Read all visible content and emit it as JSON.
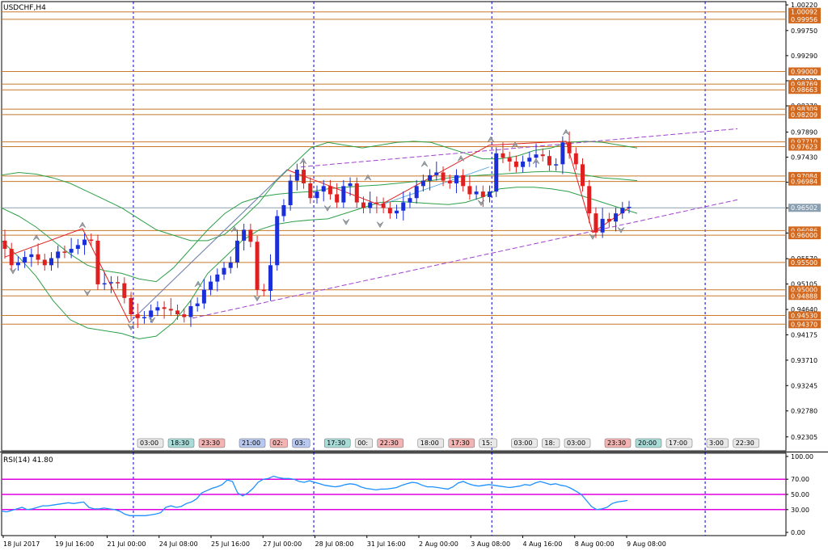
{
  "symbol_title": "USDCHF,H4",
  "rsi_title": "RSI(14) 41.80",
  "colors": {
    "bull": "#1a2fd8",
    "bear": "#e02020",
    "bollinger": "#2ea048",
    "level": "#c8782a",
    "level_tag": "#d2691e",
    "current_tag": "#8a9fb0",
    "trend": "#a040d0",
    "rsi": "#1e90ff",
    "rsi_level": "#e000e0",
    "grid": "#0000cc",
    "zigzag": "#e02020"
  },
  "chart_data": [
    {
      "type": "candlestick",
      "title": "USDCHF,H4",
      "y_ticks": [
        "1.00220",
        "0.99750",
        "0.99290",
        "0.98830",
        "0.98370",
        "0.97890",
        "0.97430",
        "0.96970",
        "0.96500",
        "0.96040",
        "0.95570",
        "0.95105",
        "0.94640",
        "0.94175",
        "0.93710",
        "0.93245",
        "0.92780",
        "0.92305"
      ],
      "ylim": [
        0.9205,
        1.0028
      ],
      "x_ticks": [
        "18 Jul 2017",
        "19 Jul 16:00",
        "21 Jul 00:00",
        "24 Jul 08:00",
        "25 Jul 16:00",
        "27 Jul 00:00",
        "28 Jul 08:00",
        "31 Jul 16:00",
        "2 Aug 00:00",
        "3 Aug 08:00",
        "4 Aug 16:00",
        "8 Aug 00:00",
        "9 Aug 08:00"
      ],
      "price_levels": [
        1.00092,
        0.99956,
        0.99,
        0.98769,
        0.98663,
        0.98309,
        0.98209,
        0.9771,
        0.97623,
        0.97084,
        0.96984,
        0.96086,
        0.96,
        0.955,
        0.95,
        0.94888,
        0.9453,
        0.9437
      ],
      "level_labels": [
        "1.00092",
        "0.99956",
        "0.99000",
        "0.98769",
        "0.98663",
        "0.98309",
        "0.98209",
        "0.97710",
        "0.97623",
        "0.97084",
        "0.96984",
        "0.96086",
        "0.96000",
        "0.95500",
        "0.95000",
        "0.94888",
        "0.94530",
        "0.94370"
      ],
      "current_price": 0.96502,
      "current_label": "0.96502",
      "close": [
        0.9575,
        0.9545,
        0.955,
        0.956,
        0.9565,
        0.9555,
        0.9545,
        0.9558,
        0.957,
        0.9568,
        0.9575,
        0.9582,
        0.9592,
        0.959,
        0.951,
        0.9512,
        0.9514,
        0.9512,
        0.9485,
        0.9455,
        0.9448,
        0.945,
        0.9462,
        0.9468,
        0.9465,
        0.9462,
        0.9455,
        0.945,
        0.947,
        0.9475,
        0.95,
        0.9515,
        0.9528,
        0.954,
        0.955,
        0.959,
        0.961,
        0.9588,
        0.95,
        0.9498,
        0.9545,
        0.9635,
        0.9655,
        0.97,
        0.972,
        0.9695,
        0.9668,
        0.968,
        0.969,
        0.9675,
        0.966,
        0.969,
        0.9695,
        0.966,
        0.965,
        0.966,
        0.9658,
        0.965,
        0.964,
        0.9645,
        0.966,
        0.9668,
        0.969,
        0.97,
        0.971,
        0.9715,
        0.97,
        0.9695,
        0.971,
        0.969,
        0.9675,
        0.968,
        0.967,
        0.968,
        0.975,
        0.9742,
        0.9735,
        0.9725,
        0.9735,
        0.9742,
        0.9748,
        0.9745,
        0.9728,
        0.973,
        0.977,
        0.975,
        0.973,
        0.969,
        0.964,
        0.9605,
        0.963,
        0.9625,
        0.964,
        0.965,
        0.9652
      ],
      "high_low_note": "wicks approximated",
      "bollinger": {
        "upper": [
          0.971,
          0.9715,
          0.9712,
          0.9705,
          0.9695,
          0.968,
          0.9665,
          0.965,
          0.963,
          0.961,
          0.96,
          0.959,
          0.959,
          0.9602,
          0.963,
          0.966,
          0.97,
          0.973,
          0.976,
          0.977,
          0.9765,
          0.976,
          0.9765,
          0.977,
          0.9772,
          0.977,
          0.976,
          0.975,
          0.974,
          0.974,
          0.9745,
          0.9755,
          0.976,
          0.977,
          0.9772,
          0.977,
          0.9765,
          0.976
        ],
        "middle": [
          0.965,
          0.9635,
          0.9615,
          0.959,
          0.9565,
          0.9545,
          0.9535,
          0.953,
          0.952,
          0.9515,
          0.954,
          0.9575,
          0.961,
          0.964,
          0.966,
          0.967,
          0.9675,
          0.9678,
          0.968,
          0.9685,
          0.9688,
          0.969,
          0.9692,
          0.9695,
          0.9698,
          0.97,
          0.9705,
          0.9708,
          0.971,
          0.9712,
          0.9714,
          0.9716,
          0.9717,
          0.9715,
          0.971,
          0.9705,
          0.9703,
          0.97
        ],
        "lower": [
          0.959,
          0.956,
          0.9525,
          0.948,
          0.9445,
          0.943,
          0.9425,
          0.942,
          0.941,
          0.9415,
          0.944,
          0.948,
          0.953,
          0.956,
          0.959,
          0.961,
          0.962,
          0.9625,
          0.9628,
          0.963,
          0.964,
          0.965,
          0.966,
          0.9662,
          0.966,
          0.9658,
          0.9656,
          0.966,
          0.967,
          0.9685,
          0.9688,
          0.9688,
          0.9685,
          0.968,
          0.967,
          0.966,
          0.965,
          0.964
        ]
      }
    },
    {
      "type": "line",
      "title": "RSI(14) 41.80",
      "y_ticks": [
        "100.00",
        "70.00",
        "50.00",
        "30.00",
        "0.00"
      ],
      "ylim": [
        0,
        100
      ],
      "levels": [
        70,
        50,
        30
      ],
      "values": [
        28,
        27,
        29,
        31,
        33,
        30,
        31,
        33,
        35,
        35,
        36,
        37,
        38,
        39,
        38,
        39,
        40,
        33,
        31,
        31,
        32,
        31,
        30,
        28,
        24,
        22,
        22,
        22,
        22,
        23,
        24,
        26,
        33,
        35,
        33,
        34,
        38,
        40,
        44,
        52,
        55,
        58,
        60,
        63,
        69,
        67,
        52,
        48,
        52,
        58,
        66,
        70,
        71,
        74,
        72,
        71,
        71,
        70,
        67,
        66,
        68,
        66,
        64,
        62,
        61,
        60,
        61,
        63,
        64,
        63,
        60,
        58,
        57,
        56,
        57,
        57,
        58,
        59,
        62,
        64,
        66,
        65,
        62,
        60,
        60,
        59,
        58,
        57,
        60,
        65,
        67,
        64,
        62,
        61,
        62,
        63,
        62,
        61,
        60,
        59,
        60,
        61,
        63,
        62,
        65,
        67,
        65,
        63,
        64,
        62,
        61,
        58,
        54,
        50,
        42,
        34,
        30,
        31,
        33,
        38,
        40,
        41,
        42
      ]
    }
  ],
  "vline_fractions": [
    0.168,
    0.398,
    0.625,
    0.897
  ],
  "time_tags": [
    "03:00",
    "18:30",
    "23:30",
    "21:00",
    "02:",
    "03:",
    "17:30",
    "00:",
    "22:30",
    "18:00",
    "17:30",
    "15:",
    "03:00",
    "18:",
    "03:00",
    "23:30",
    "20:00",
    "17:00",
    "3:00",
    "22:30"
  ],
  "time_tag_kinds": [
    "grey",
    "teal",
    "red",
    "blue",
    "red",
    "blue",
    "teal",
    "grey",
    "red",
    "grey",
    "red",
    "grey",
    "grey",
    "grey",
    "grey",
    "red",
    "teal",
    "grey",
    "grey",
    "grey"
  ]
}
